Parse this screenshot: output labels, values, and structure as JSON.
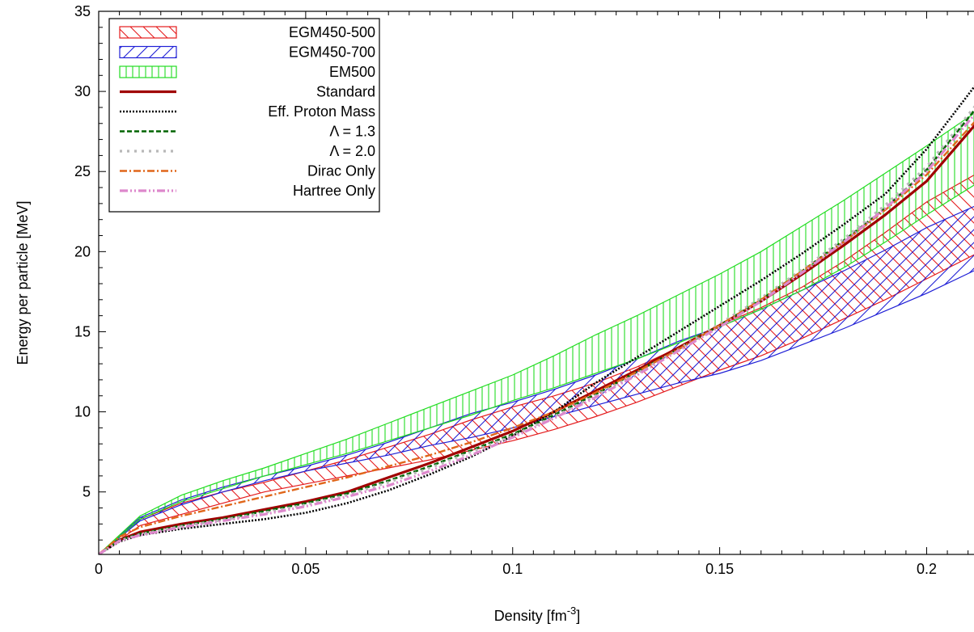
{
  "chart_data": {
    "type": "line",
    "xlabel": "Density [fm",
    "xlabel_sup": "-3",
    "xlabel_suffix": "]",
    "ylabel": "Energy per particle [MeV]",
    "xlim": [
      0,
      0.213
    ],
    "ylim": [
      1.1,
      35
    ],
    "grid": false,
    "legend_position": "top-left",
    "x_ticks": [
      0,
      0.05,
      0.1,
      0.15,
      0.2
    ],
    "x_tick_labels": [
      "0",
      "0.05",
      "0.1",
      "0.15",
      "0.2"
    ],
    "y_ticks": [
      5,
      10,
      15,
      20,
      25,
      30,
      35
    ],
    "y_tick_labels": [
      "5",
      "10",
      "15",
      "20",
      "25",
      "30",
      "35"
    ],
    "bands": [
      {
        "name": "EGM450-500",
        "color": "#e41a1c",
        "hatch": "down",
        "x": [
          0,
          0.01,
          0.02,
          0.03,
          0.04,
          0.05,
          0.06,
          0.07,
          0.08,
          0.09,
          0.1,
          0.11,
          0.12,
          0.13,
          0.14,
          0.15,
          0.16,
          0.17,
          0.18,
          0.19,
          0.2,
          0.213
        ],
        "upper": [
          1.1,
          3.3,
          4.3,
          5.0,
          5.6,
          6.3,
          7.0,
          7.8,
          8.6,
          9.5,
          10.3,
          11.0,
          11.8,
          12.8,
          14.0,
          15.4,
          16.5,
          17.8,
          19.4,
          21.2,
          23.1,
          25.0
        ],
        "lower": [
          1.1,
          2.9,
          3.6,
          4.3,
          5.0,
          5.5,
          6.0,
          6.5,
          7.0,
          7.6,
          8.2,
          8.9,
          9.7,
          10.6,
          11.6,
          12.6,
          13.5,
          14.6,
          15.8,
          17.0,
          18.3,
          20.0
        ]
      },
      {
        "name": "EGM450-700",
        "color": "#1f1fd6",
        "hatch": "up",
        "x": [
          0,
          0.01,
          0.02,
          0.03,
          0.04,
          0.05,
          0.06,
          0.07,
          0.08,
          0.09,
          0.1,
          0.11,
          0.12,
          0.13,
          0.14,
          0.15,
          0.16,
          0.17,
          0.18,
          0.19,
          0.2,
          0.213
        ],
        "upper": [
          1.1,
          3.4,
          4.5,
          5.3,
          6.0,
          6.6,
          7.3,
          8.1,
          9.0,
          9.9,
          10.6,
          11.4,
          12.3,
          13.3,
          14.4,
          15.3,
          16.4,
          17.6,
          18.8,
          20.1,
          21.5,
          23.0
        ],
        "lower": [
          1.1,
          3.2,
          4.2,
          5.0,
          5.7,
          6.3,
          6.8,
          7.3,
          7.9,
          8.4,
          9.0,
          9.7,
          10.4,
          11.1,
          11.8,
          12.4,
          13.2,
          14.2,
          15.2,
          16.3,
          17.4,
          19.0
        ]
      },
      {
        "name": "EM500",
        "color": "#22dd22",
        "hatch": "vertical",
        "x": [
          0,
          0.01,
          0.02,
          0.03,
          0.04,
          0.05,
          0.06,
          0.07,
          0.08,
          0.09,
          0.1,
          0.11,
          0.12,
          0.13,
          0.14,
          0.15,
          0.16,
          0.17,
          0.18,
          0.19,
          0.2,
          0.213
        ],
        "upper": [
          1.1,
          3.5,
          4.8,
          5.7,
          6.5,
          7.4,
          8.3,
          9.3,
          10.3,
          11.3,
          12.3,
          13.5,
          14.8,
          16.0,
          17.3,
          18.6,
          20.0,
          21.6,
          23.2,
          24.9,
          26.6,
          28.9
        ],
        "lower": [
          1.1,
          3.3,
          4.4,
          5.2,
          6.0,
          6.7,
          7.4,
          8.2,
          9.0,
          9.8,
          10.7,
          11.5,
          12.4,
          13.3,
          14.3,
          15.3,
          16.4,
          17.6,
          19.0,
          20.6,
          22.3,
          24.4
        ]
      }
    ],
    "series": [
      {
        "name": "Standard",
        "color": "#a00000",
        "width": 3.2,
        "dash": "",
        "x": [
          0,
          0.005,
          0.01,
          0.02,
          0.03,
          0.04,
          0.05,
          0.06,
          0.07,
          0.08,
          0.09,
          0.1,
          0.11,
          0.12,
          0.13,
          0.14,
          0.15,
          0.16,
          0.17,
          0.18,
          0.19,
          0.2,
          0.213
        ],
        "y": [
          1.1,
          2.0,
          2.5,
          3.0,
          3.4,
          3.9,
          4.4,
          5.0,
          5.9,
          6.8,
          7.8,
          8.8,
          10.0,
          11.3,
          12.6,
          14.0,
          15.4,
          16.9,
          18.6,
          20.4,
          22.3,
          24.4,
          28.3
        ]
      },
      {
        "name": "Eff. Proton Mass",
        "color": "#000000",
        "width": 2.6,
        "dash": "2,2",
        "x": [
          0,
          0.005,
          0.01,
          0.02,
          0.03,
          0.04,
          0.05,
          0.06,
          0.07,
          0.08,
          0.09,
          0.1,
          0.11,
          0.12,
          0.13,
          0.14,
          0.15,
          0.16,
          0.17,
          0.18,
          0.19,
          0.2,
          0.213
        ],
        "y": [
          1.1,
          1.9,
          2.3,
          2.7,
          3.0,
          3.3,
          3.7,
          4.3,
          5.1,
          6.1,
          7.2,
          8.5,
          10.0,
          11.8,
          13.4,
          15.0,
          16.6,
          18.2,
          19.9,
          21.7,
          23.6,
          26.4,
          30.8
        ]
      },
      {
        "name": "Λ = 1.3",
        "color": "#006400",
        "width": 2.6,
        "dash": "6,3",
        "x": [
          0,
          0.005,
          0.01,
          0.02,
          0.03,
          0.04,
          0.05,
          0.06,
          0.07,
          0.08,
          0.09,
          0.1,
          0.11,
          0.12,
          0.13,
          0.14,
          0.15,
          0.16,
          0.17,
          0.18,
          0.19,
          0.2,
          0.213
        ],
        "y": [
          1.1,
          2.0,
          2.4,
          2.9,
          3.3,
          3.8,
          4.3,
          4.9,
          5.7,
          6.6,
          7.6,
          8.6,
          9.8,
          11.1,
          12.5,
          13.9,
          15.4,
          17.0,
          18.8,
          20.7,
          22.7,
          25.1,
          29.3
        ]
      },
      {
        "name": "Λ = 2.0",
        "color": "#b8b8b8",
        "width": 3.2,
        "dash": "3,6",
        "x": [
          0,
          0.005,
          0.01,
          0.02,
          0.03,
          0.04,
          0.05,
          0.06,
          0.07,
          0.08,
          0.09,
          0.1,
          0.11,
          0.12,
          0.13,
          0.14,
          0.15,
          0.16,
          0.17,
          0.18,
          0.19,
          0.2,
          0.213
        ],
        "y": [
          1.1,
          1.95,
          2.35,
          2.85,
          3.25,
          3.7,
          4.2,
          4.8,
          5.6,
          6.5,
          7.5,
          8.5,
          9.7,
          11.0,
          12.4,
          13.9,
          15.5,
          17.1,
          18.9,
          20.8,
          22.9,
          25.3,
          29.5
        ]
      },
      {
        "name": "Dirac Only",
        "color": "#e0661a",
        "width": 2.4,
        "dash": "9,3,2,3",
        "x": [
          0,
          0.005,
          0.01,
          0.02,
          0.03,
          0.04,
          0.05,
          0.06,
          0.07,
          0.08,
          0.09,
          0.1,
          0.11,
          0.12,
          0.13,
          0.14,
          0.15,
          0.16,
          0.17,
          0.18,
          0.19,
          0.2,
          0.213
        ],
        "y": [
          1.1,
          2.2,
          2.8,
          3.5,
          4.1,
          4.7,
          5.3,
          5.9,
          6.6,
          7.3,
          8.1,
          9.0,
          10.0,
          11.2,
          12.5,
          13.9,
          15.4,
          17.0,
          18.8,
          20.6,
          22.6,
          24.8,
          28.5
        ]
      },
      {
        "name": "Hartree Only",
        "color": "#dd88cc",
        "width": 3.2,
        "dash": "10,3,2,3,2,3",
        "x": [
          0,
          0.005,
          0.01,
          0.02,
          0.03,
          0.04,
          0.05,
          0.06,
          0.07,
          0.08,
          0.09,
          0.1,
          0.11,
          0.12,
          0.13,
          0.14,
          0.15,
          0.16,
          0.17,
          0.18,
          0.19,
          0.2,
          0.213
        ],
        "y": [
          1.1,
          1.95,
          2.3,
          2.8,
          3.2,
          3.6,
          4.1,
          4.7,
          5.4,
          6.3,
          7.3,
          8.4,
          9.6,
          10.9,
          12.3,
          13.8,
          15.3,
          16.9,
          18.7,
          20.6,
          22.7,
          25.0,
          29.0
        ]
      }
    ],
    "legend": [
      {
        "label": "EGM450-500",
        "kind": "band",
        "ref": 0
      },
      {
        "label": "EGM450-700",
        "kind": "band",
        "ref": 1
      },
      {
        "label": "EM500",
        "kind": "band",
        "ref": 2
      },
      {
        "label": "Standard",
        "kind": "line",
        "ref": 0
      },
      {
        "label": "Eff. Proton Mass",
        "kind": "line",
        "ref": 1
      },
      {
        "label": "Λ = 1.3",
        "kind": "line",
        "ref": 2
      },
      {
        "label": "Λ = 2.0",
        "kind": "line",
        "ref": 3
      },
      {
        "label": "Dirac Only",
        "kind": "line",
        "ref": 4
      },
      {
        "label": "Hartree Only",
        "kind": "line",
        "ref": 5
      }
    ]
  }
}
